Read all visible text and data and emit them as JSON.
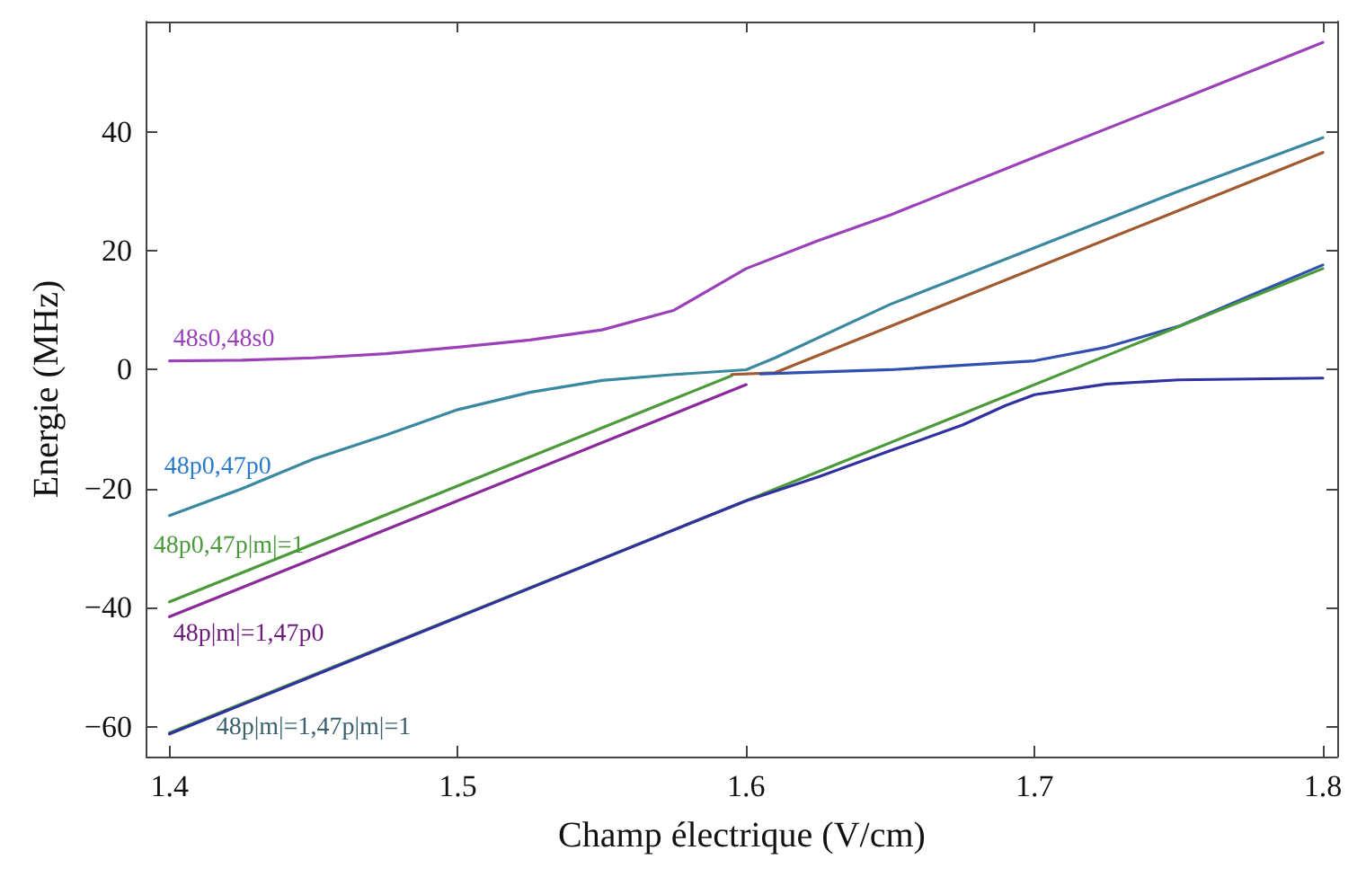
{
  "chart_data": {
    "type": "line",
    "xlabel": "Champ électrique (V/cm)",
    "ylabel": "Energie (MHz)",
    "xlim": [
      1.392,
      1.805
    ],
    "ylim": [
      -65,
      58.5
    ],
    "xticks": [
      1.4,
      1.5,
      1.6,
      1.7,
      1.8
    ],
    "yticks": [
      -60,
      -40,
      -20,
      0,
      20,
      40
    ],
    "grid": false,
    "marker": "none",
    "line_style": "solid",
    "series": [
      {
        "name": "48s0,48s0",
        "color": "#9a40b8",
        "x": [
          1.4,
          1.425,
          1.45,
          1.475,
          1.5,
          1.525,
          1.55,
          1.575,
          1.6,
          1.625,
          1.65,
          1.7,
          1.75,
          1.8
        ],
        "values": [
          1.5,
          1.6,
          2,
          2.7,
          3.8,
          5,
          6.7,
          10,
          17,
          21.7,
          26,
          35.7,
          45.3,
          55
        ]
      },
      {
        "name": "48p0,47p0",
        "color": "#3a88a0",
        "x": [
          1.4,
          1.425,
          1.45,
          1.475,
          1.5,
          1.525,
          1.55,
          1.575,
          1.6,
          1.61,
          1.65,
          1.7,
          1.75,
          1.8
        ],
        "values": [
          -24.5,
          -20,
          -15,
          -11,
          -6.7,
          -3.8,
          -1.8,
          -0.8,
          0,
          2,
          11,
          20.5,
          30,
          39
        ]
      },
      {
        "name": "48p0,47p|m|=1",
        "color": "#4a9a3a",
        "x": [
          1.4,
          1.595
        ],
        "values": [
          -39,
          -1
        ]
      },
      {
        "name": "48p|m|=1,47p0",
        "color": "#8a2a9a",
        "x": [
          1.4,
          1.6
        ],
        "values": [
          -41.5,
          -2.5
        ]
      },
      {
        "color": "#a05a30",
        "x": [
          1.595,
          1.61,
          1.8
        ],
        "values": [
          -0.8,
          -0.5,
          36.5
        ]
      },
      {
        "color": "#3050b0",
        "x": [
          1.605,
          1.65,
          1.7,
          1.725,
          1.75,
          1.775,
          1.8
        ],
        "values": [
          -0.7,
          0,
          1.5,
          3.8,
          7.3,
          12.5,
          17.6
        ]
      },
      {
        "name": "48p|m|=1,47p|m|=1",
        "color": "#4a9a3a",
        "x": [
          1.4,
          1.8
        ],
        "values": [
          -61,
          17
        ]
      },
      {
        "color": "#3030a0",
        "x": [
          1.4,
          1.6,
          1.625,
          1.65,
          1.675,
          1.69,
          1.7,
          1.725,
          1.75,
          1.8
        ],
        "values": [
          -61.2,
          -22,
          -18,
          -13.6,
          -9.3,
          -6,
          -4.2,
          -2.4,
          -1.7,
          -1.4
        ]
      }
    ]
  }
}
